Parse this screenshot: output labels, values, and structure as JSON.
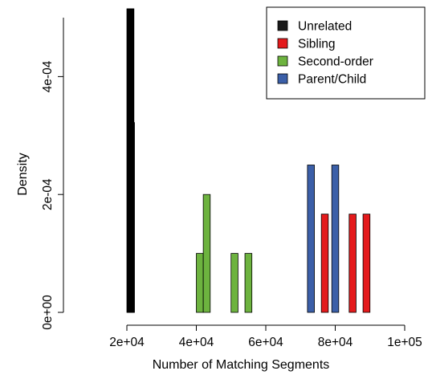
{
  "chart_data": {
    "type": "bar",
    "title": "",
    "xlabel": "Number of Matching Segments",
    "ylabel": "Density",
    "xlim": [
      20000,
      100000
    ],
    "ylim": [
      0,
      0.0005
    ],
    "x_ticks": [
      {
        "value": 20000,
        "label": "2e+04"
      },
      {
        "value": 40000,
        "label": "4e+04"
      },
      {
        "value": 60000,
        "label": "6e+04"
      },
      {
        "value": 80000,
        "label": "8e+04"
      },
      {
        "value": 100000,
        "label": "1e+05"
      }
    ],
    "y_ticks": [
      {
        "value": 0,
        "label": "0e+00"
      },
      {
        "value": 0.0002,
        "label": "2e-04"
      },
      {
        "value": 0.0004,
        "label": "4e-04"
      }
    ],
    "grid": false,
    "legend_position": "top-right",
    "series": [
      {
        "name": "Unrelated",
        "color": "#1a1a1a",
        "bins": [
          {
            "x0": 20000,
            "x1": 20100,
            "y": 0.000515
          },
          {
            "x0": 20100,
            "x1": 20200,
            "y": 0.000515
          },
          {
            "x0": 20200,
            "x1": 20300,
            "y": 0.000515
          },
          {
            "x0": 20300,
            "x1": 20400,
            "y": 0.000515
          },
          {
            "x0": 20400,
            "x1": 20500,
            "y": 0.000515
          },
          {
            "x0": 20500,
            "x1": 20600,
            "y": 0.000515
          },
          {
            "x0": 20600,
            "x1": 20700,
            "y": 0.000515
          },
          {
            "x0": 20700,
            "x1": 20800,
            "y": 0.000515
          },
          {
            "x0": 20800,
            "x1": 20900,
            "y": 0.000515
          },
          {
            "x0": 20900,
            "x1": 21000,
            "y": 0.000515
          },
          {
            "x0": 21000,
            "x1": 21100,
            "y": 0.000515
          },
          {
            "x0": 21100,
            "x1": 21200,
            "y": 0.000515
          },
          {
            "x0": 21200,
            "x1": 21300,
            "y": 0.000515
          },
          {
            "x0": 21300,
            "x1": 21400,
            "y": 0.000515
          },
          {
            "x0": 21400,
            "x1": 21500,
            "y": 0.000515
          },
          {
            "x0": 21500,
            "x1": 21600,
            "y": 0.000515
          },
          {
            "x0": 21600,
            "x1": 21700,
            "y": 0.000515
          },
          {
            "x0": 21700,
            "x1": 21800,
            "y": 0.000515
          },
          {
            "x0": 21800,
            "x1": 21900,
            "y": 0.000515
          },
          {
            "x0": 21900,
            "x1": 22000,
            "y": 0.000515
          },
          {
            "x0": 22000,
            "x1": 22200,
            "y": 0.000322
          }
        ]
      },
      {
        "name": "Sibling",
        "color": "#e41a1c",
        "bins": [
          {
            "x0": 76000,
            "x1": 78000,
            "y": 0.0001667
          },
          {
            "x0": 84000,
            "x1": 86000,
            "y": 0.0001667
          },
          {
            "x0": 88000,
            "x1": 90000,
            "y": 0.0001667
          }
        ]
      },
      {
        "name": "Second-order",
        "color": "#6db33f",
        "bins": [
          {
            "x0": 40000,
            "x1": 42000,
            "y": 0.0001
          },
          {
            "x0": 42000,
            "x1": 44000,
            "y": 0.0002
          },
          {
            "x0": 50000,
            "x1": 52000,
            "y": 0.0001
          },
          {
            "x0": 54000,
            "x1": 56000,
            "y": 0.0001
          }
        ]
      },
      {
        "name": "Parent/Child",
        "color": "#3b5fa8",
        "bins": [
          {
            "x0": 72000,
            "x1": 74000,
            "y": 0.00025
          },
          {
            "x0": 79000,
            "x1": 81000,
            "y": 0.00025
          }
        ]
      }
    ]
  }
}
